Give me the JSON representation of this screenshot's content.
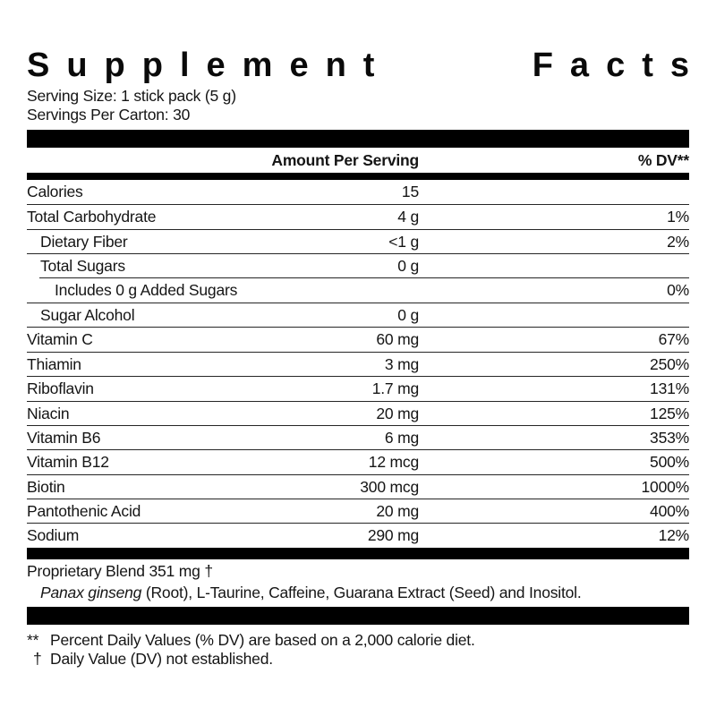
{
  "title": {
    "word1": "Supplement",
    "word2": "Facts"
  },
  "serving_info": {
    "serving_size": "Serving Size: 1 stick pack (5 g)",
    "servings_per_carton": "Servings Per Carton: 30"
  },
  "table": {
    "header": {
      "amount_label": "Amount Per Serving",
      "dv_label": "% DV**"
    },
    "rows": [
      {
        "name": "Calories",
        "amount": "15",
        "dv": ""
      },
      {
        "name": "Total Carbohydrate",
        "amount": "4 g",
        "dv": "1%"
      },
      {
        "name": "Dietary Fiber",
        "amount": "<1 g",
        "dv": "2%"
      },
      {
        "name": "Total Sugars",
        "amount": "0 g",
        "dv": ""
      },
      {
        "name": "Includes 0 g Added Sugars",
        "amount": "",
        "dv": "0%"
      },
      {
        "name": "Sugar Alcohol",
        "amount": "0 g",
        "dv": ""
      },
      {
        "name": "Vitamin C",
        "amount": "60 mg",
        "dv": "67%"
      },
      {
        "name": "Thiamin",
        "amount": "3 mg",
        "dv": "250%"
      },
      {
        "name": "Riboflavin",
        "amount": "1.7 mg",
        "dv": "131%"
      },
      {
        "name": "Niacin",
        "amount": "20 mg",
        "dv": "125%"
      },
      {
        "name": "Vitamin B6",
        "amount": "6 mg",
        "dv": "353%"
      },
      {
        "name": "Vitamin B12",
        "amount": "12 mcg",
        "dv": "500%"
      },
      {
        "name": "Biotin",
        "amount": "300 mcg",
        "dv": "1000%"
      },
      {
        "name": "Pantothenic Acid",
        "amount": "20 mg",
        "dv": "400%"
      },
      {
        "name": "Sodium",
        "amount": "290 mg",
        "dv": "12%"
      }
    ],
    "proprietary": {
      "name": "Proprietary Blend",
      "amount": "351 mg",
      "dv": "†",
      "ingredients_italic": "Panax ginseng",
      "ingredients_rest": " (Root), L-Taurine, Caffeine, Guarana Extract (Seed) and Inositol."
    }
  },
  "footnotes": [
    {
      "marker": "**",
      "text": "Percent Daily Values (% DV) are based on a 2,000 calorie diet."
    },
    {
      "marker": "†",
      "text": "Daily Value (DV) not established."
    }
  ],
  "colors": {
    "background": "#ffffff",
    "text": "#151515",
    "bar": "#000000"
  }
}
